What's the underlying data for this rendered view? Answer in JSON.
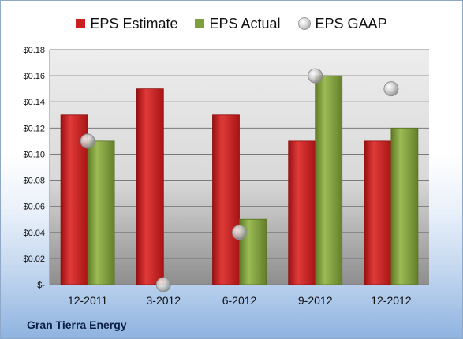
{
  "company": "Gran Tierra Energy",
  "colors": {
    "estimate": "#cc1f1f",
    "actual": "#7f9f3a",
    "gaap": "#b8b8b8"
  },
  "chart_data": {
    "type": "bar",
    "categories": [
      "12-2011",
      "3-2012",
      "6-2012",
      "9-2012",
      "12-2012"
    ],
    "series": [
      {
        "name": "EPS Estimate",
        "kind": "bar",
        "values": [
          0.13,
          0.15,
          0.13,
          0.11,
          0.11
        ]
      },
      {
        "name": "EPS Actual",
        "kind": "bar",
        "values": [
          0.11,
          null,
          0.05,
          0.16,
          0.12
        ]
      },
      {
        "name": "EPS GAAP",
        "kind": "marker",
        "values": [
          0.11,
          0.0,
          0.04,
          0.16,
          0.15
        ]
      }
    ],
    "ylim": [
      0,
      0.18
    ],
    "yticks": [
      0,
      0.02,
      0.04,
      0.06,
      0.08,
      0.1,
      0.12,
      0.14,
      0.16,
      0.18
    ],
    "ytick_labels": [
      "$-",
      "$0.02",
      "$0.04",
      "$0.06",
      "$0.08",
      "$0.10",
      "$0.12",
      "$0.14",
      "$0.16",
      "$0.18"
    ],
    "grid": true,
    "legend": "top"
  }
}
